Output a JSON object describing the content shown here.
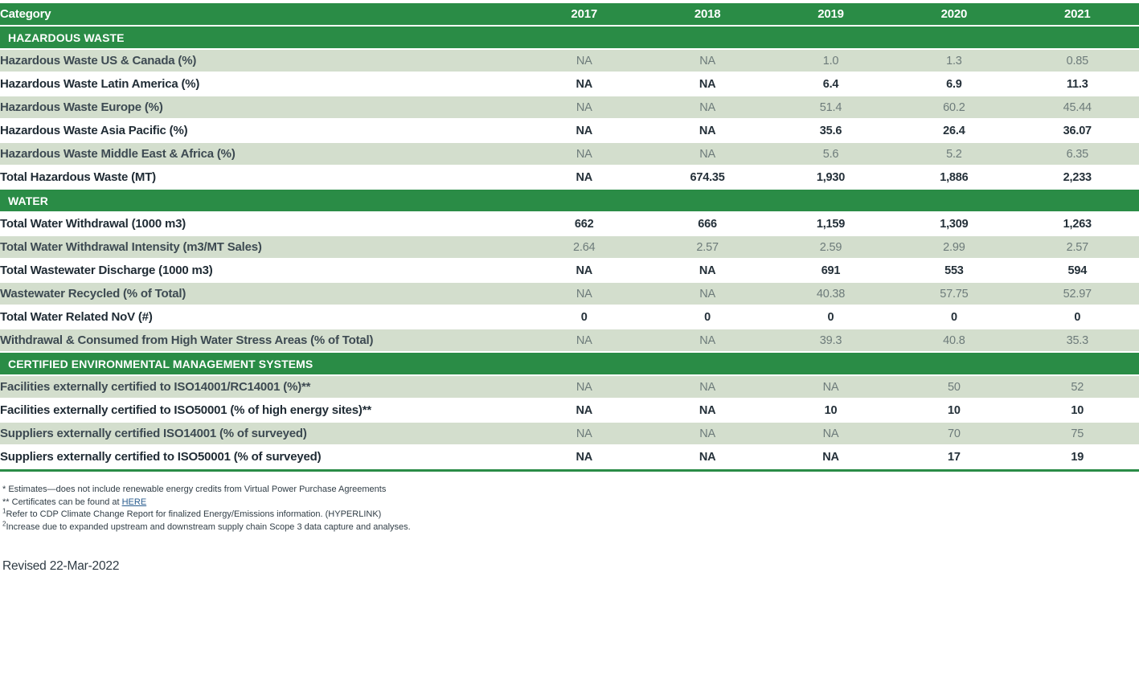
{
  "colors": {
    "brand_green": "#2a8c46",
    "row_alt_green": "#d3decd",
    "label_dark": "#1f2b34",
    "label_soft": "#3d4a52",
    "value_gray": "#6d7b7a",
    "value_dark": "#243039",
    "link_blue": "#2a5d8f"
  },
  "table": {
    "type": "table",
    "header": {
      "category": "Category",
      "years": [
        "2017",
        "2018",
        "2019",
        "2020",
        "2021"
      ]
    },
    "sections": [
      {
        "title": "HAZARDOUS WASTE",
        "rows": [
          {
            "label": "Hazardous Waste US & Canada (%)",
            "values": [
              "NA",
              "NA",
              "1.0",
              "1.3",
              "0.85"
            ]
          },
          {
            "label": "Hazardous Waste Latin America (%)",
            "values": [
              "NA",
              "NA",
              "6.4",
              "6.9",
              "11.3"
            ]
          },
          {
            "label": "Hazardous Waste Europe (%)",
            "values": [
              "NA",
              "NA",
              "51.4",
              "60.2",
              "45.44"
            ]
          },
          {
            "label": "Hazardous Waste Asia Pacific (%)",
            "values": [
              "NA",
              "NA",
              "35.6",
              "26.4",
              "36.07"
            ]
          },
          {
            "label": "Hazardous Waste Middle East & Africa (%)",
            "values": [
              "NA",
              "NA",
              "5.6",
              "5.2",
              "6.35"
            ]
          },
          {
            "label": "Total Hazardous Waste (MT)",
            "values": [
              "NA",
              "674.35",
              "1,930",
              "1,886",
              "2,233"
            ]
          }
        ]
      },
      {
        "title": "WATER",
        "rows": [
          {
            "label": "Total Water Withdrawal (1000 m3)",
            "values": [
              "662",
              "666",
              "1,159",
              "1,309",
              "1,263"
            ]
          },
          {
            "label": "Total Water Withdrawal Intensity (m3/MT Sales)",
            "values": [
              "2.64",
              "2.57",
              "2.59",
              "2.99",
              "2.57"
            ]
          },
          {
            "label": "Total Wastewater Discharge (1000 m3)",
            "values": [
              "NA",
              "NA",
              "691",
              "553",
              "594"
            ]
          },
          {
            "label": "Wastewater Recycled (% of Total)",
            "values": [
              "NA",
              "NA",
              "40.38",
              "57.75",
              "52.97"
            ]
          },
          {
            "label": "Total Water Related NoV (#)",
            "values": [
              "0",
              "0",
              "0",
              "0",
              "0"
            ]
          },
          {
            "label": "Withdrawal & Consumed from High Water Stress Areas (% of Total)",
            "values": [
              "NA",
              "NA",
              "39.3",
              "40.8",
              "35.3"
            ]
          }
        ]
      },
      {
        "title": "CERTIFIED ENVIRONMENTAL MANAGEMENT SYSTEMS",
        "rows": [
          {
            "label": "Facilities externally certified to ISO14001/RC14001 (%)**",
            "values": [
              "NA",
              "NA",
              "NA",
              "50",
              "52"
            ]
          },
          {
            "label": "Facilities externally certified to ISO50001 (% of high energy sites)**",
            "values": [
              "NA",
              "NA",
              "10",
              "10",
              "10"
            ]
          },
          {
            "label": "Suppliers externally certified ISO14001 (% of surveyed)",
            "values": [
              "NA",
              "NA",
              "NA",
              "70",
              "75"
            ]
          },
          {
            "label": "Suppliers externally certified to ISO50001 (% of surveyed)",
            "values": [
              "NA",
              "NA",
              "NA",
              "17",
              "19"
            ]
          }
        ]
      }
    ]
  },
  "footnotes": [
    {
      "marker": "*",
      "sup": false,
      "text": "Estimates—does not include renewable energy credits from Virtual Power Purchase Agreements"
    },
    {
      "marker": "**",
      "sup": false,
      "text": "Certificates can be found at ",
      "link_text": "HERE"
    },
    {
      "marker": "1",
      "sup": true,
      "text": "Refer to CDP Climate Change Report for finalized Energy/Emissions information. (HYPERLINK)"
    },
    {
      "marker": "2",
      "sup": true,
      "text": "Increase due to expanded upstream and downstream supply chain Scope 3 data capture and analyses."
    }
  ],
  "revised_label": "Revised 22-Mar-2022"
}
